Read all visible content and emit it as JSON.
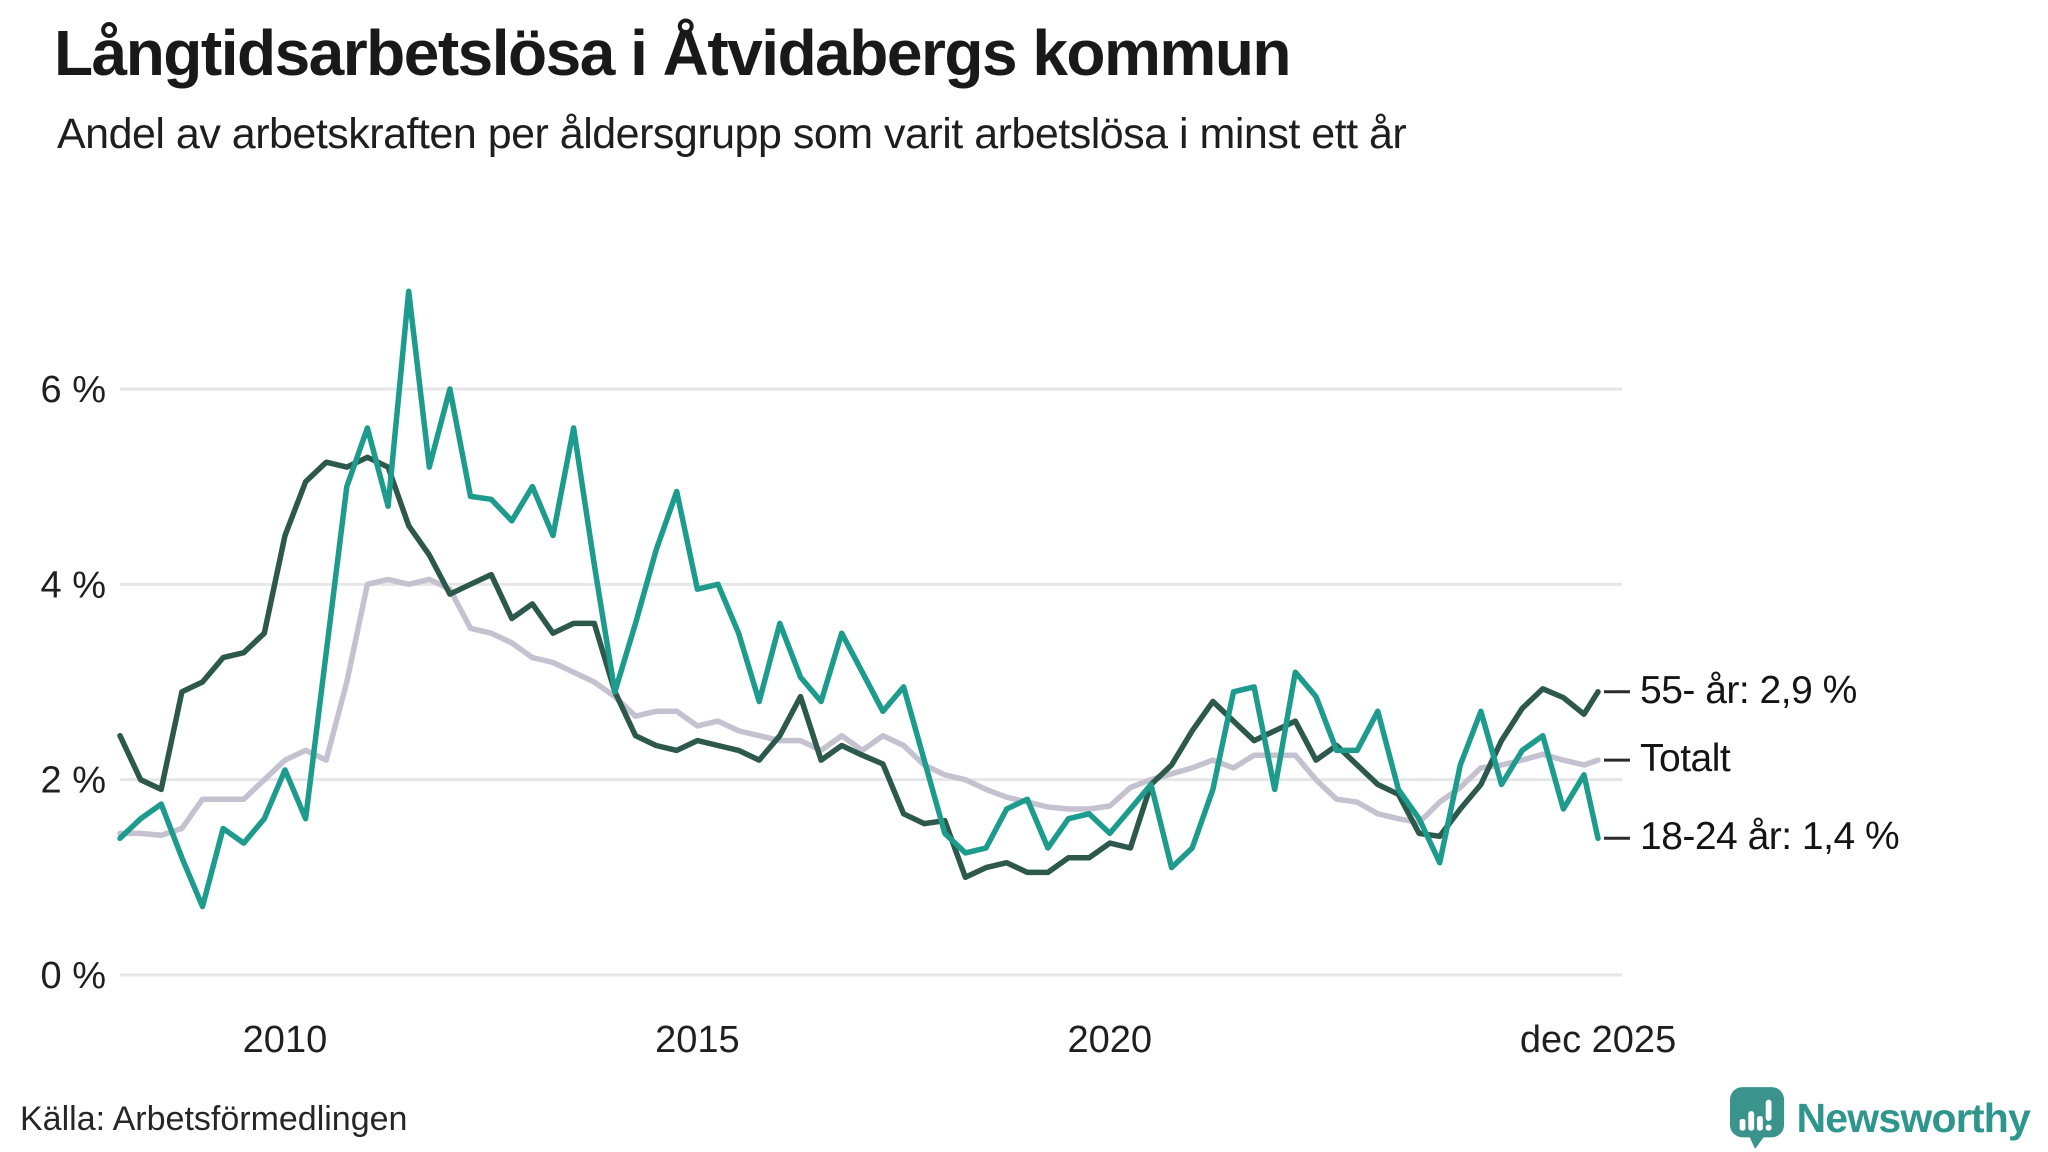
{
  "header": {
    "title": "Långtidsarbetslösa i Åtvidabergs kommun",
    "subtitle": "Andel av arbetskraften per åldersgrupp som varit arbetslösa i minst ett år"
  },
  "footer": {
    "source": "Källa: Arbetsförmedlingen",
    "brand": "Newsworthy"
  },
  "chart_data": {
    "type": "line",
    "title": "Långtidsarbetslösa i Åtvidabergs kommun",
    "subtitle": "Andel av arbetskraften per åldersgrupp som varit arbetslösa i minst ett år",
    "xlabel": "",
    "ylabel": "",
    "xlim": [
      2008,
      2026.3
    ],
    "ylim": [
      0,
      7.3
    ],
    "grid": "horizontal",
    "legend_position": "right-end-labels",
    "colors": {
      "grid": "#e6e6e8",
      "axis_text": "#1f1f1f",
      "end_dash": "#2b2b2b",
      "background": "#ffffff",
      "brand_teal": "#2f968d"
    },
    "y_ticks": [
      {
        "v": 0,
        "label": "0 %"
      },
      {
        "v": 2,
        "label": "2 %"
      },
      {
        "v": 4,
        "label": "4 %"
      },
      {
        "v": 6,
        "label": "6 %"
      }
    ],
    "x_ticks": [
      {
        "t": 2010,
        "label": "2010"
      },
      {
        "t": 2015,
        "label": "2015"
      },
      {
        "t": 2020,
        "label": "2020"
      },
      {
        "t": 2025.92,
        "label": "dec 2025"
      }
    ],
    "x": [
      2008.0,
      2008.25,
      2008.5,
      2008.75,
      2009.0,
      2009.25,
      2009.5,
      2009.75,
      2010.0,
      2010.25,
      2010.5,
      2010.75,
      2011.0,
      2011.25,
      2011.5,
      2011.75,
      2012.0,
      2012.25,
      2012.5,
      2012.75,
      2013.0,
      2013.25,
      2013.5,
      2013.75,
      2014.0,
      2014.25,
      2014.5,
      2014.75,
      2015.0,
      2015.25,
      2015.5,
      2015.75,
      2016.0,
      2016.25,
      2016.5,
      2016.75,
      2017.0,
      2017.25,
      2017.5,
      2017.75,
      2018.0,
      2018.25,
      2018.5,
      2018.75,
      2019.0,
      2019.25,
      2019.5,
      2019.75,
      2020.0,
      2020.25,
      2020.5,
      2020.75,
      2021.0,
      2021.25,
      2021.5,
      2021.75,
      2022.0,
      2022.25,
      2022.5,
      2022.75,
      2023.0,
      2023.25,
      2023.5,
      2023.75,
      2024.0,
      2024.25,
      2024.5,
      2024.75,
      2025.0,
      2025.25,
      2025.5,
      2025.75,
      2025.92
    ],
    "series": [
      {
        "name": "55- år",
        "color": "#2d584c",
        "end_label": "55- år: 2,9 %",
        "last_value": 2.9,
        "values": [
          2.45,
          2.0,
          1.9,
          2.9,
          3.0,
          3.25,
          3.3,
          3.5,
          4.5,
          5.05,
          5.25,
          5.2,
          5.3,
          5.2,
          4.6,
          4.3,
          3.9,
          4.0,
          4.1,
          3.65,
          3.8,
          3.5,
          3.6,
          3.6,
          2.9,
          2.45,
          2.35,
          2.3,
          2.4,
          2.35,
          2.3,
          2.2,
          2.45,
          2.85,
          2.2,
          2.35,
          2.25,
          2.16,
          1.65,
          1.55,
          1.58,
          1.0,
          1.1,
          1.15,
          1.05,
          1.05,
          1.2,
          1.2,
          1.35,
          1.3,
          1.95,
          2.15,
          2.5,
          2.8,
          2.6,
          2.4,
          2.5,
          2.6,
          2.2,
          2.35,
          2.15,
          1.95,
          1.85,
          1.45,
          1.42,
          1.7,
          1.95,
          2.4,
          2.73,
          2.93,
          2.84,
          2.67,
          2.9
        ]
      },
      {
        "name": "Totalt",
        "color": "#c4c2cf",
        "end_label": "Totalt",
        "last_value": 2.2,
        "values": [
          1.45,
          1.45,
          1.43,
          1.5,
          1.8,
          1.8,
          1.8,
          2.0,
          2.2,
          2.3,
          2.2,
          3.0,
          4.0,
          4.05,
          4.0,
          4.05,
          3.95,
          3.55,
          3.5,
          3.4,
          3.25,
          3.2,
          3.1,
          3.0,
          2.85,
          2.65,
          2.7,
          2.7,
          2.55,
          2.6,
          2.5,
          2.45,
          2.4,
          2.4,
          2.3,
          2.45,
          2.3,
          2.45,
          2.35,
          2.15,
          2.05,
          2.0,
          1.9,
          1.82,
          1.77,
          1.72,
          1.7,
          1.7,
          1.73,
          1.92,
          2.0,
          2.06,
          2.12,
          2.2,
          2.12,
          2.25,
          2.25,
          2.25,
          2.0,
          1.8,
          1.77,
          1.65,
          1.6,
          1.56,
          1.77,
          1.92,
          2.12,
          2.15,
          2.2,
          2.26,
          2.2,
          2.15,
          2.2
        ]
      },
      {
        "name": "18-24 år",
        "color": "#1d9b8c",
        "end_label": "18-24 år: 1,4 %",
        "last_value": 1.4,
        "values": [
          1.4,
          1.6,
          1.75,
          1.2,
          0.7,
          1.5,
          1.35,
          1.6,
          2.1,
          1.6,
          3.3,
          5.0,
          5.6,
          4.8,
          7.0,
          5.2,
          6.0,
          4.9,
          4.87,
          4.65,
          5.0,
          4.5,
          5.6,
          4.2,
          2.9,
          3.6,
          4.35,
          4.95,
          3.95,
          4.0,
          3.5,
          2.8,
          3.6,
          3.05,
          2.8,
          3.5,
          3.1,
          2.7,
          2.95,
          2.2,
          1.45,
          1.25,
          1.3,
          1.7,
          1.8,
          1.3,
          1.6,
          1.65,
          1.45,
          1.7,
          1.95,
          1.1,
          1.3,
          1.9,
          2.9,
          2.95,
          1.9,
          3.1,
          2.85,
          2.3,
          2.3,
          2.7,
          1.9,
          1.6,
          1.15,
          2.15,
          2.7,
          1.95,
          2.3,
          2.45,
          1.7,
          2.05,
          1.4
        ]
      }
    ]
  }
}
